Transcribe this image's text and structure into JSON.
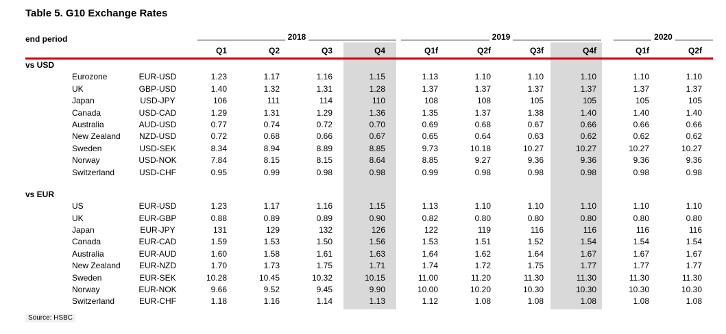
{
  "title": "Table 5. G10 Exchange Rates",
  "header": {
    "row_label": "end period",
    "year_groups": [
      {
        "label": "2018",
        "quarters": [
          "Q1",
          "Q2",
          "Q3",
          "Q4"
        ]
      },
      {
        "label": "2019",
        "quarters": [
          "Q1f",
          "Q2f",
          "Q3f",
          "Q4f"
        ]
      },
      {
        "label": "2020",
        "quarters": [
          "Q1f",
          "Q2f"
        ]
      }
    ],
    "highlighted_quarter_columns": [
      "2018 Q4",
      "2019 Q4f"
    ]
  },
  "sections": [
    {
      "label": "vs USD",
      "rows": [
        {
          "country": "Eurozone",
          "pair": "EUR-USD",
          "values": [
            "1.23",
            "1.17",
            "1.16",
            "1.15",
            "1.13",
            "1.10",
            "1.10",
            "1.10",
            "1.10",
            "1.10"
          ]
        },
        {
          "country": "UK",
          "pair": "GBP-USD",
          "values": [
            "1.40",
            "1.32",
            "1.31",
            "1.28",
            "1.37",
            "1.37",
            "1.37",
            "1.37",
            "1.37",
            "1.37"
          ]
        },
        {
          "country": "Japan",
          "pair": "USD-JPY",
          "values": [
            "106",
            "111",
            "114",
            "110",
            "108",
            "108",
            "105",
            "105",
            "105",
            "105"
          ]
        },
        {
          "country": "Canada",
          "pair": "USD-CAD",
          "values": [
            "1.29",
            "1.31",
            "1.29",
            "1.36",
            "1.35",
            "1.37",
            "1.38",
            "1.40",
            "1.40",
            "1.40"
          ]
        },
        {
          "country": "Australia",
          "pair": "AUD-USD",
          "values": [
            "0.77",
            "0.74",
            "0.72",
            "0.70",
            "0.69",
            "0.68",
            "0.67",
            "0.66",
            "0.66",
            "0.66"
          ]
        },
        {
          "country": "New Zealand",
          "pair": "NZD-USD",
          "values": [
            "0.72",
            "0.68",
            "0.66",
            "0.67",
            "0.65",
            "0.64",
            "0.63",
            "0.62",
            "0.62",
            "0.62"
          ]
        },
        {
          "country": "Sweden",
          "pair": "USD-SEK",
          "values": [
            "8.34",
            "8.94",
            "8.89",
            "8.85",
            "9.73",
            "10.18",
            "10.27",
            "10.27",
            "10.27",
            "10.27"
          ]
        },
        {
          "country": "Norway",
          "pair": "USD-NOK",
          "values": [
            "7.84",
            "8.15",
            "8.15",
            "8.64",
            "8.85",
            "9.27",
            "9.36",
            "9.36",
            "9.36",
            "9.36"
          ]
        },
        {
          "country": "Switzerland",
          "pair": "USD-CHF",
          "values": [
            "0.95",
            "0.99",
            "0.98",
            "0.98",
            "0.99",
            "0.98",
            "0.98",
            "0.98",
            "0.98",
            "0.98"
          ]
        }
      ]
    },
    {
      "label": "vs EUR",
      "rows": [
        {
          "country": "US",
          "pair": "EUR-USD",
          "values": [
            "1.23",
            "1.17",
            "1.16",
            "1.15",
            "1.13",
            "1.10",
            "1.10",
            "1.10",
            "1.10",
            "1.10"
          ]
        },
        {
          "country": "UK",
          "pair": "EUR-GBP",
          "values": [
            "0.88",
            "0.89",
            "0.89",
            "0.90",
            "0.82",
            "0.80",
            "0.80",
            "0.80",
            "0.80",
            "0.80"
          ]
        },
        {
          "country": "Japan",
          "pair": "EUR-JPY",
          "values": [
            "131",
            "129",
            "132",
            "126",
            "122",
            "119",
            "116",
            "116",
            "116",
            "116"
          ]
        },
        {
          "country": "Canada",
          "pair": "EUR-CAD",
          "values": [
            "1.59",
            "1.53",
            "1.50",
            "1.56",
            "1.53",
            "1.51",
            "1.52",
            "1.54",
            "1.54",
            "1.54"
          ]
        },
        {
          "country": "Australia",
          "pair": "EUR-AUD",
          "values": [
            "1.60",
            "1.58",
            "1.61",
            "1.63",
            "1.64",
            "1.62",
            "1.64",
            "1.67",
            "1.67",
            "1.67"
          ]
        },
        {
          "country": "New Zealand",
          "pair": "EUR-NZD",
          "values": [
            "1.70",
            "1.73",
            "1.75",
            "1.71",
            "1.74",
            "1.72",
            "1.75",
            "1.77",
            "1.77",
            "1.77"
          ]
        },
        {
          "country": "Sweden",
          "pair": "EUR-SEK",
          "values": [
            "10.28",
            "10.45",
            "10.32",
            "10.15",
            "11.00",
            "11.20",
            "11.30",
            "11.30",
            "11.30",
            "11.30"
          ]
        },
        {
          "country": "Norway",
          "pair": "EUR-NOK",
          "values": [
            "9.66",
            "9.52",
            "9.45",
            "9.90",
            "10.00",
            "10.20",
            "10.30",
            "10.30",
            "10.30",
            "10.30"
          ]
        },
        {
          "country": "Switzerland",
          "pair": "EUR-CHF",
          "values": [
            "1.18",
            "1.16",
            "1.14",
            "1.13",
            "1.12",
            "1.08",
            "1.08",
            "1.08",
            "1.08",
            "1.08"
          ]
        }
      ]
    }
  ],
  "source": "Source: HSBC",
  "colors": {
    "rule_red": "#cc0011",
    "band_gray": "#d9d9d9",
    "source_bg": "#f1f1f1"
  }
}
